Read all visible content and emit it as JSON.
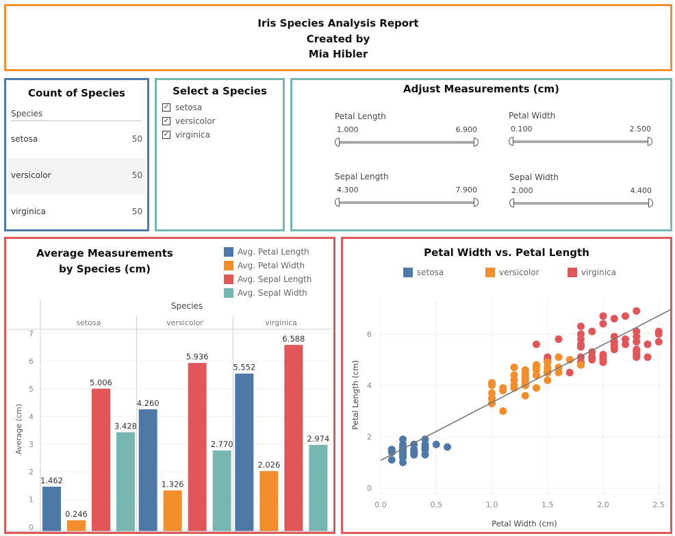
{
  "header": {
    "title": "Iris Species Analysis Report",
    "created_by_label": "Created by",
    "author": "Mia Hibler"
  },
  "colors": {
    "setosa": "#4e79a7",
    "versicolor": "#f28e2b",
    "virginica": "#e15759",
    "petal_length": "#4e79a7",
    "petal_width": "#f28e2b",
    "sepal_length": "#e15759",
    "sepal_width": "#76b7b2"
  },
  "count_panel": {
    "title": "Count of Species",
    "column_header": "Species",
    "rows": [
      {
        "species": "setosa",
        "count": "50"
      },
      {
        "species": "versicolor",
        "count": "50"
      },
      {
        "species": "virginica",
        "count": "50"
      }
    ]
  },
  "select_panel": {
    "title": "Select a Species",
    "options": [
      {
        "label": "setosa",
        "checked": true,
        "mark": "✓"
      },
      {
        "label": "versicolor",
        "checked": true,
        "mark": "✓"
      },
      {
        "label": "virginica",
        "checked": true,
        "mark": "✓"
      }
    ]
  },
  "adjust_panel": {
    "title": "Adjust Measurements (cm)",
    "sliders": [
      {
        "label": "Petal Length",
        "min": "1.000",
        "max": "6.900"
      },
      {
        "label": "Petal Width",
        "min": "0.100",
        "max": "2.500"
      },
      {
        "label": "Sepal Length",
        "min": "4.300",
        "max": "7.900"
      },
      {
        "label": "Sepal Width",
        "min": "2.000",
        "max": "4.400"
      }
    ]
  },
  "bar_panel": {
    "title_line1": "Average Measurements",
    "title_line2": "by Species (cm)",
    "legend": [
      "Avg. Petal Length",
      "Avg. Petal Width",
      "Avg. Sepal Length",
      "Avg. Sepal Width"
    ]
  },
  "scatter_panel": {
    "title": "Petal Width vs. Petal Length",
    "legend": [
      "setosa",
      "versicolor",
      "virginica"
    ]
  },
  "chart_data": [
    {
      "type": "bar",
      "title": "Average Measurements by Species (cm)",
      "column_header": "Species",
      "categories": [
        "setosa",
        "versicolor",
        "virginica"
      ],
      "series": [
        {
          "name": "Avg. Petal Length",
          "values": [
            1.462,
            4.26,
            5.552
          ],
          "labels": [
            "1.462",
            "4.260",
            "5.552"
          ]
        },
        {
          "name": "Avg. Petal Width",
          "values": [
            0.246,
            1.326,
            2.026
          ],
          "labels": [
            "0.246",
            "1.326",
            "2.026"
          ]
        },
        {
          "name": "Avg. Sepal Length",
          "values": [
            5.006,
            5.936,
            6.588
          ],
          "labels": [
            "5.006",
            "5.936",
            "6.588"
          ]
        },
        {
          "name": "Avg. Sepal Width",
          "values": [
            3.428,
            2.77,
            2.974
          ],
          "labels": [
            "3.428",
            "2.770",
            "2.974"
          ]
        }
      ],
      "xlabel": "",
      "ylabel": "Average (cm)",
      "ylim": [
        0,
        7.3
      ],
      "yticks": [
        0,
        1,
        2,
        3,
        4,
        5,
        6,
        7
      ],
      "grid": true,
      "legend_position": "top-right"
    },
    {
      "type": "scatter",
      "title": "Petal Width vs. Petal Length",
      "xlabel": "Petal Width (cm)",
      "ylabel": "Petal Length (cm)",
      "xlim": [
        0,
        2.65
      ],
      "ylim": [
        -0.2,
        7.1
      ],
      "xticks": [
        "0.0",
        "0.5",
        "1.0",
        "1.5",
        "2.0",
        "2.5"
      ],
      "yticks": [
        "0",
        "2",
        "4",
        "6"
      ],
      "grid": true,
      "legend_position": "top",
      "trend_line": {
        "x": [
          0,
          2.65
        ],
        "y": [
          1.08,
          7.05
        ]
      },
      "series": [
        {
          "name": "setosa",
          "points": [
            [
              0.2,
              1.4
            ],
            [
              0.2,
              1.4
            ],
            [
              0.2,
              1.3
            ],
            [
              0.2,
              1.5
            ],
            [
              0.2,
              1.4
            ],
            [
              0.4,
              1.7
            ],
            [
              0.3,
              1.4
            ],
            [
              0.2,
              1.5
            ],
            [
              0.2,
              1.4
            ],
            [
              0.1,
              1.5
            ],
            [
              0.2,
              1.5
            ],
            [
              0.2,
              1.6
            ],
            [
              0.1,
              1.4
            ],
            [
              0.1,
              1.1
            ],
            [
              0.2,
              1.2
            ],
            [
              0.4,
              1.5
            ],
            [
              0.4,
              1.3
            ],
            [
              0.3,
              1.4
            ],
            [
              0.3,
              1.7
            ],
            [
              0.3,
              1.5
            ],
            [
              0.2,
              1.7
            ],
            [
              0.4,
              1.5
            ],
            [
              0.2,
              1.0
            ],
            [
              0.5,
              1.7
            ],
            [
              0.2,
              1.9
            ],
            [
              0.2,
              1.6
            ],
            [
              0.4,
              1.6
            ],
            [
              0.2,
              1.5
            ],
            [
              0.2,
              1.4
            ],
            [
              0.2,
              1.6
            ],
            [
              0.2,
              1.6
            ],
            [
              0.4,
              1.5
            ],
            [
              0.1,
              1.5
            ],
            [
              0.2,
              1.4
            ],
            [
              0.2,
              1.5
            ],
            [
              0.2,
              1.2
            ],
            [
              0.2,
              1.3
            ],
            [
              0.1,
              1.4
            ],
            [
              0.2,
              1.3
            ],
            [
              0.2,
              1.5
            ],
            [
              0.3,
              1.3
            ],
            [
              0.3,
              1.3
            ],
            [
              0.2,
              1.3
            ],
            [
              0.6,
              1.6
            ],
            [
              0.4,
              1.9
            ],
            [
              0.3,
              1.4
            ],
            [
              0.2,
              1.6
            ],
            [
              0.2,
              1.4
            ],
            [
              0.2,
              1.5
            ],
            [
              0.2,
              1.4
            ]
          ]
        },
        {
          "name": "versicolor",
          "points": [
            [
              1.4,
              4.7
            ],
            [
              1.5,
              4.5
            ],
            [
              1.5,
              4.9
            ],
            [
              1.3,
              4.0
            ],
            [
              1.5,
              4.6
            ],
            [
              1.3,
              4.5
            ],
            [
              1.6,
              4.7
            ],
            [
              1.0,
              3.3
            ],
            [
              1.3,
              4.6
            ],
            [
              1.4,
              3.9
            ],
            [
              1.0,
              3.5
            ],
            [
              1.5,
              4.2
            ],
            [
              1.0,
              4.0
            ],
            [
              1.4,
              4.7
            ],
            [
              1.3,
              3.6
            ],
            [
              1.4,
              4.4
            ],
            [
              1.5,
              4.5
            ],
            [
              1.0,
              4.1
            ],
            [
              1.5,
              4.5
            ],
            [
              1.1,
              3.9
            ],
            [
              1.8,
              4.8
            ],
            [
              1.3,
              4.0
            ],
            [
              1.5,
              4.9
            ],
            [
              1.2,
              4.7
            ],
            [
              1.3,
              4.3
            ],
            [
              1.4,
              4.4
            ],
            [
              1.4,
              4.8
            ],
            [
              1.7,
              5.0
            ],
            [
              1.5,
              4.5
            ],
            [
              1.0,
              3.5
            ],
            [
              1.1,
              3.8
            ],
            [
              1.0,
              3.7
            ],
            [
              1.2,
              3.9
            ],
            [
              1.6,
              5.1
            ],
            [
              1.5,
              4.5
            ],
            [
              1.6,
              4.5
            ],
            [
              1.5,
              4.7
            ],
            [
              1.3,
              4.4
            ],
            [
              1.3,
              4.1
            ],
            [
              1.3,
              4.0
            ],
            [
              1.2,
              4.4
            ],
            [
              1.4,
              4.6
            ],
            [
              1.2,
              4.0
            ],
            [
              1.0,
              3.3
            ],
            [
              1.3,
              4.2
            ],
            [
              1.2,
              4.2
            ],
            [
              1.3,
              4.2
            ],
            [
              1.3,
              4.3
            ],
            [
              1.1,
              3.0
            ],
            [
              1.3,
              4.1
            ]
          ]
        },
        {
          "name": "virginica",
          "points": [
            [
              2.5,
              6.0
            ],
            [
              1.9,
              5.1
            ],
            [
              2.1,
              5.9
            ],
            [
              1.8,
              5.6
            ],
            [
              2.2,
              5.8
            ],
            [
              2.1,
              6.6
            ],
            [
              1.7,
              4.5
            ],
            [
              1.8,
              6.3
            ],
            [
              1.8,
              5.8
            ],
            [
              2.5,
              6.1
            ],
            [
              2.0,
              5.1
            ],
            [
              1.9,
              5.3
            ],
            [
              2.1,
              5.5
            ],
            [
              2.0,
              5.0
            ],
            [
              2.4,
              5.1
            ],
            [
              2.3,
              5.3
            ],
            [
              1.8,
              5.5
            ],
            [
              2.2,
              6.7
            ],
            [
              2.3,
              6.9
            ],
            [
              1.5,
              5.0
            ],
            [
              2.3,
              5.7
            ],
            [
              2.0,
              4.9
            ],
            [
              2.0,
              6.7
            ],
            [
              1.8,
              4.9
            ],
            [
              2.1,
              5.7
            ],
            [
              1.8,
              6.0
            ],
            [
              1.8,
              4.8
            ],
            [
              1.8,
              4.9
            ],
            [
              2.1,
              5.6
            ],
            [
              1.6,
              5.8
            ],
            [
              1.9,
              6.1
            ],
            [
              2.0,
              6.4
            ],
            [
              2.2,
              5.6
            ],
            [
              1.5,
              5.1
            ],
            [
              1.4,
              5.6
            ],
            [
              2.3,
              6.1
            ],
            [
              2.4,
              5.6
            ],
            [
              1.8,
              5.5
            ],
            [
              1.8,
              4.8
            ],
            [
              2.1,
              5.4
            ],
            [
              2.4,
              5.6
            ],
            [
              2.3,
              5.1
            ],
            [
              1.9,
              5.1
            ],
            [
              2.3,
              5.9
            ],
            [
              2.5,
              5.7
            ],
            [
              2.3,
              5.2
            ],
            [
              1.9,
              5.0
            ],
            [
              2.0,
              5.2
            ],
            [
              2.3,
              5.4
            ],
            [
              1.8,
              5.1
            ]
          ]
        }
      ]
    }
  ]
}
